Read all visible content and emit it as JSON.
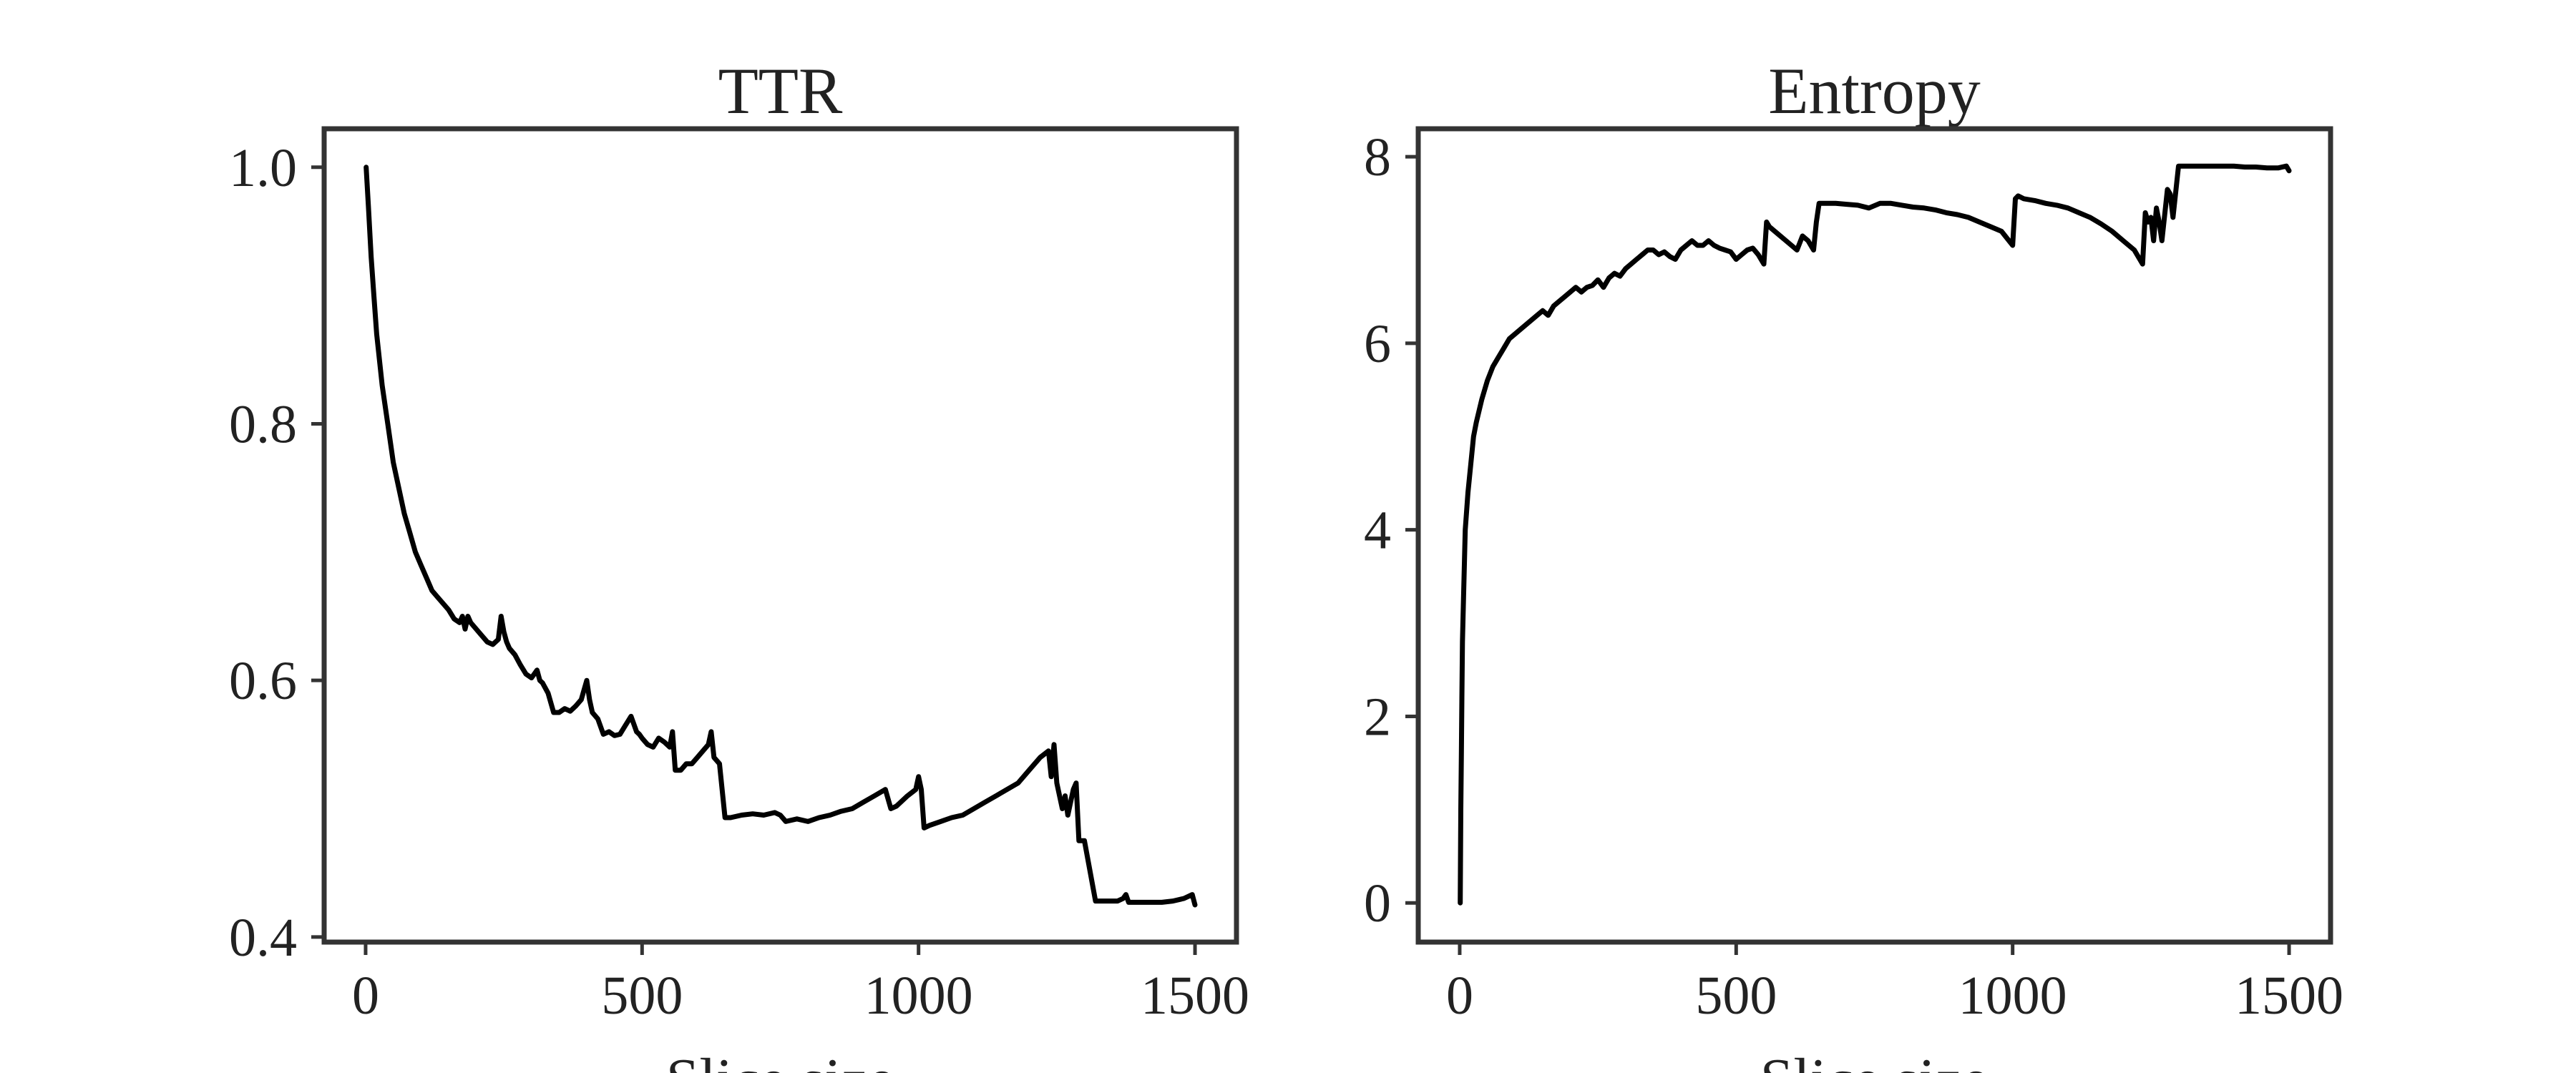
{
  "chart_data": [
    {
      "type": "line",
      "title": "TTR",
      "xlabel": "Slice size",
      "ylabel": "",
      "xlim": [
        -75,
        1575
      ],
      "ylim": [
        0.396,
        1.03
      ],
      "xticks": [
        0,
        500,
        1000,
        1500
      ],
      "xtick_labels": [
        "0",
        "500",
        "1000",
        "1500"
      ],
      "yticks": [
        0.4,
        0.6,
        0.8,
        1.0
      ],
      "ytick_labels": [
        "0.4",
        "0.6",
        "0.8",
        "1.0"
      ],
      "grid": false,
      "color": "#000000",
      "series": [
        {
          "x": [
            1,
            5,
            10,
            15,
            20,
            30,
            40,
            50,
            60,
            70,
            80,
            90,
            100,
            110,
            120,
            130,
            140,
            150,
            160,
            170,
            175,
            180,
            185,
            190,
            200,
            210,
            220,
            230,
            240,
            245,
            250,
            255,
            260,
            270,
            280,
            290,
            300,
            310,
            315,
            320,
            330,
            340,
            350,
            360,
            370,
            380,
            390,
            400,
            405,
            410,
            420,
            430,
            440,
            450,
            460,
            470,
            480,
            490,
            495,
            500,
            510,
            520,
            530,
            540,
            550,
            555,
            560,
            570,
            580,
            590,
            600,
            610,
            620,
            625,
            630,
            640,
            650,
            660,
            680,
            700,
            720,
            740,
            750,
            760,
            780,
            800,
            820,
            840,
            860,
            880,
            900,
            920,
            940,
            950,
            960,
            980,
            995,
            1000,
            1005,
            1010,
            1020,
            1040,
            1060,
            1080,
            1100,
            1120,
            1140,
            1160,
            1180,
            1200,
            1220,
            1235,
            1240,
            1245,
            1250,
            1260,
            1265,
            1270,
            1280,
            1285,
            1290,
            1300,
            1320,
            1340,
            1360,
            1370,
            1375,
            1380,
            1400,
            1420,
            1440,
            1460,
            1480,
            1495,
            1500
          ],
          "y": [
            1.0,
            0.97,
            0.93,
            0.9,
            0.87,
            0.83,
            0.8,
            0.77,
            0.75,
            0.73,
            0.715,
            0.7,
            0.69,
            0.68,
            0.67,
            0.665,
            0.66,
            0.655,
            0.648,
            0.645,
            0.65,
            0.64,
            0.65,
            0.645,
            0.64,
            0.635,
            0.63,
            0.628,
            0.632,
            0.65,
            0.638,
            0.63,
            0.625,
            0.62,
            0.612,
            0.605,
            0.602,
            0.608,
            0.6,
            0.598,
            0.59,
            0.575,
            0.575,
            0.578,
            0.576,
            0.58,
            0.585,
            0.6,
            0.585,
            0.575,
            0.57,
            0.558,
            0.56,
            0.557,
            0.558,
            0.565,
            0.572,
            0.56,
            0.558,
            0.555,
            0.55,
            0.548,
            0.555,
            0.552,
            0.548,
            0.56,
            0.53,
            0.53,
            0.535,
            0.535,
            0.54,
            0.545,
            0.55,
            0.56,
            0.54,
            0.535,
            0.493,
            0.493,
            0.495,
            0.496,
            0.495,
            0.497,
            0.495,
            0.49,
            0.492,
            0.49,
            0.493,
            0.495,
            0.498,
            0.5,
            0.505,
            0.51,
            0.515,
            0.5,
            0.502,
            0.51,
            0.515,
            0.525,
            0.515,
            0.485,
            0.487,
            0.49,
            0.493,
            0.495,
            0.5,
            0.505,
            0.51,
            0.515,
            0.52,
            0.53,
            0.54,
            0.545,
            0.525,
            0.55,
            0.52,
            0.5,
            0.51,
            0.495,
            0.515,
            0.52,
            0.475,
            0.475,
            0.428,
            0.428,
            0.428,
            0.43,
            0.433,
            0.427,
            0.427,
            0.427,
            0.427,
            0.428,
            0.43,
            0.433,
            0.425
          ]
        }
      ]
    },
    {
      "type": "line",
      "title": "Entropy",
      "xlabel": "Slice size",
      "ylabel": "",
      "xlim": [
        -75,
        1575
      ],
      "ylim": [
        -0.42,
        8.3
      ],
      "xticks": [
        0,
        500,
        1000,
        1500
      ],
      "xtick_labels": [
        "0",
        "500",
        "1000",
        "1500"
      ],
      "yticks": [
        0,
        2,
        4,
        6,
        8
      ],
      "ytick_labels": [
        "0",
        "2",
        "4",
        "6",
        "8"
      ],
      "grid": false,
      "color": "#000000",
      "series": [
        {
          "x": [
            1,
            2,
            3,
            4,
            5,
            7,
            10,
            15,
            20,
            25,
            30,
            40,
            50,
            60,
            70,
            80,
            90,
            100,
            110,
            120,
            130,
            140,
            150,
            160,
            170,
            180,
            190,
            200,
            210,
            220,
            230,
            240,
            250,
            260,
            270,
            280,
            290,
            300,
            310,
            320,
            330,
            340,
            350,
            360,
            370,
            380,
            390,
            400,
            410,
            420,
            430,
            440,
            450,
            460,
            470,
            480,
            490,
            500,
            510,
            520,
            530,
            540,
            550,
            555,
            560,
            570,
            580,
            590,
            600,
            610,
            620,
            630,
            640,
            645,
            650,
            660,
            680,
            700,
            720,
            740,
            760,
            780,
            800,
            820,
            840,
            860,
            880,
            900,
            920,
            940,
            960,
            980,
            1000,
            1005,
            1010,
            1020,
            1040,
            1060,
            1080,
            1100,
            1120,
            1140,
            1160,
            1180,
            1200,
            1220,
            1235,
            1240,
            1245,
            1250,
            1255,
            1260,
            1265,
            1270,
            1280,
            1285,
            1290,
            1300,
            1320,
            1340,
            1360,
            1380,
            1400,
            1420,
            1440,
            1460,
            1480,
            1495,
            1500
          ],
          "y": [
            0.0,
            1.0,
            1.6,
            2.2,
            2.8,
            3.3,
            4.0,
            4.4,
            4.7,
            5.0,
            5.15,
            5.4,
            5.6,
            5.75,
            5.85,
            5.95,
            6.05,
            6.1,
            6.15,
            6.2,
            6.25,
            6.3,
            6.35,
            6.3,
            6.4,
            6.45,
            6.5,
            6.55,
            6.6,
            6.55,
            6.6,
            6.62,
            6.68,
            6.6,
            6.7,
            6.75,
            6.72,
            6.8,
            6.85,
            6.9,
            6.95,
            7.0,
            7.0,
            6.95,
            6.98,
            6.93,
            6.9,
            7.0,
            7.05,
            7.1,
            7.05,
            7.05,
            7.1,
            7.05,
            7.02,
            7.0,
            6.98,
            6.9,
            6.95,
            7.0,
            7.02,
            6.95,
            6.85,
            7.3,
            7.25,
            7.2,
            7.15,
            7.1,
            7.05,
            7.0,
            7.15,
            7.1,
            7.0,
            7.3,
            7.5,
            7.5,
            7.5,
            7.49,
            7.48,
            7.45,
            7.5,
            7.5,
            7.48,
            7.46,
            7.45,
            7.43,
            7.4,
            7.38,
            7.35,
            7.3,
            7.25,
            7.2,
            7.05,
            7.55,
            7.58,
            7.55,
            7.53,
            7.5,
            7.48,
            7.45,
            7.4,
            7.35,
            7.28,
            7.2,
            7.1,
            7.0,
            6.85,
            7.4,
            7.3,
            7.35,
            7.1,
            7.45,
            7.3,
            7.1,
            7.65,
            7.6,
            7.35,
            7.9,
            7.9,
            7.9,
            7.9,
            7.9,
            7.9,
            7.89,
            7.89,
            7.88,
            7.88,
            7.9,
            7.85
          ]
        }
      ]
    }
  ]
}
